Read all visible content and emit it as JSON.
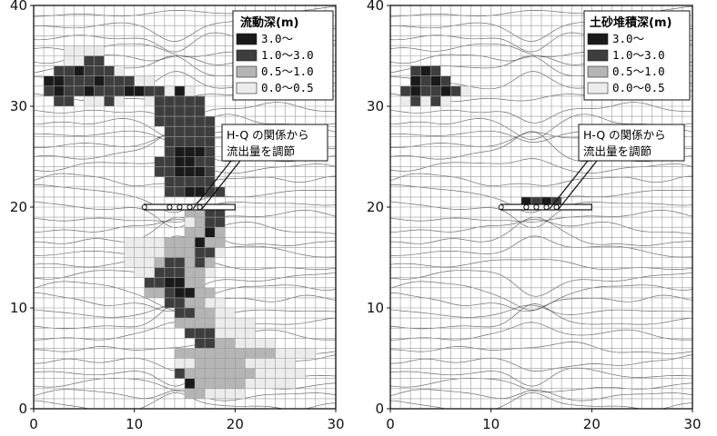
{
  "colors": {
    "depth_3_plus": "#1a1a1a",
    "depth_1_3": "#3e3e3e",
    "depth_05_1": "#b5b5b5",
    "depth_0_05": "#ececec",
    "grid": "#9a9a9a",
    "contour": "#3a3a3a"
  },
  "chart_data": [
    {
      "type": "heatmap",
      "panel": "left",
      "title": "",
      "xlabel": "",
      "ylabel": "",
      "xlim": [
        0,
        30
      ],
      "ylim": [
        0,
        40
      ],
      "x_ticks": [
        "0",
        "10",
        "20",
        "30"
      ],
      "y_ticks": [
        "0",
        "10",
        "20",
        "30",
        "40"
      ],
      "legend": {
        "title": "流動深(m)",
        "position": "top-right",
        "items": [
          {
            "label": "3.0～",
            "class": 3
          },
          {
            "label": "1.0～3.0",
            "class": 2
          },
          {
            "label": "0.5～1.0",
            "class": 1
          },
          {
            "label": "0.0～0.5",
            "class": 0
          }
        ]
      },
      "annotation": {
        "lines": [
          "H-Q の関係から",
          "流出量を調節"
        ],
        "x": 16,
        "y": 20
      },
      "structure": {
        "x_range": [
          11,
          20
        ],
        "y": 20
      },
      "cells_note": "each row [y, x_start, x_end, class]",
      "cells": [
        [
          35,
          3,
          7,
          0
        ],
        [
          34,
          3,
          5,
          0
        ],
        [
          34,
          5,
          7,
          2
        ],
        [
          33,
          2,
          4,
          2
        ],
        [
          33,
          4,
          5,
          3
        ],
        [
          33,
          5,
          8,
          2
        ],
        [
          33,
          8,
          9,
          0
        ],
        [
          32,
          1,
          3,
          3
        ],
        [
          32,
          3,
          6,
          2
        ],
        [
          32,
          6,
          7,
          3
        ],
        [
          32,
          7,
          10,
          2
        ],
        [
          32,
          10,
          12,
          0
        ],
        [
          31,
          1,
          2,
          2
        ],
        [
          31,
          2,
          3,
          3
        ],
        [
          31,
          3,
          5,
          2
        ],
        [
          31,
          5,
          6,
          3
        ],
        [
          31,
          6,
          9,
          2
        ],
        [
          31,
          9,
          11,
          3
        ],
        [
          31,
          11,
          13,
          2
        ],
        [
          31,
          13,
          14,
          0
        ],
        [
          31,
          14,
          15,
          3
        ],
        [
          31,
          15,
          16,
          0
        ],
        [
          30,
          2,
          4,
          2
        ],
        [
          30,
          5,
          7,
          0
        ],
        [
          30,
          7,
          8,
          2
        ],
        [
          30,
          8,
          9,
          0
        ],
        [
          30,
          11,
          12,
          0
        ],
        [
          30,
          12,
          17,
          2
        ],
        [
          29,
          12,
          17,
          2
        ],
        [
          28,
          12,
          18,
          2
        ],
        [
          27,
          13,
          18,
          2
        ],
        [
          26,
          13,
          18,
          2
        ],
        [
          25,
          13,
          14,
          2
        ],
        [
          25,
          14,
          17,
          3
        ],
        [
          25,
          17,
          18,
          2
        ],
        [
          24,
          12,
          14,
          2
        ],
        [
          24,
          14,
          16,
          3
        ],
        [
          24,
          16,
          18,
          2
        ],
        [
          23,
          12,
          14,
          2
        ],
        [
          23,
          14,
          17,
          3
        ],
        [
          23,
          17,
          18,
          2
        ],
        [
          22,
          13,
          18,
          2
        ],
        [
          21,
          13,
          15,
          2
        ],
        [
          21,
          15,
          17,
          3
        ],
        [
          21,
          17,
          19,
          2
        ],
        [
          19,
          15,
          17,
          1
        ],
        [
          19,
          17,
          19,
          2
        ],
        [
          18,
          15,
          16,
          0
        ],
        [
          18,
          16,
          17,
          1
        ],
        [
          18,
          17,
          19,
          2
        ],
        [
          17,
          15,
          17,
          1
        ],
        [
          17,
          17,
          18,
          3
        ],
        [
          17,
          18,
          19,
          1
        ],
        [
          16,
          9,
          13,
          0
        ],
        [
          16,
          13,
          16,
          1
        ],
        [
          16,
          16,
          17,
          3
        ],
        [
          16,
          17,
          19,
          1
        ],
        [
          15,
          9,
          13,
          0
        ],
        [
          15,
          13,
          16,
          1
        ],
        [
          15,
          16,
          18,
          2
        ],
        [
          15,
          18,
          19,
          0
        ],
        [
          14,
          9,
          12,
          0
        ],
        [
          14,
          12,
          13,
          1
        ],
        [
          14,
          13,
          15,
          2
        ],
        [
          14,
          15,
          16,
          1
        ],
        [
          14,
          16,
          17,
          2
        ],
        [
          14,
          17,
          18,
          1
        ],
        [
          13,
          10,
          12,
          0
        ],
        [
          13,
          12,
          15,
          2
        ],
        [
          13,
          15,
          17,
          1
        ],
        [
          13,
          17,
          18,
          0
        ],
        [
          12,
          11,
          13,
          2
        ],
        [
          12,
          13,
          15,
          3
        ],
        [
          12,
          15,
          17,
          1
        ],
        [
          11,
          11,
          13,
          1
        ],
        [
          11,
          13,
          14,
          2
        ],
        [
          11,
          14,
          16,
          3
        ],
        [
          11,
          16,
          18,
          1
        ],
        [
          10,
          13,
          15,
          2
        ],
        [
          10,
          15,
          17,
          1
        ],
        [
          10,
          17,
          19,
          0
        ],
        [
          9,
          14,
          16,
          2
        ],
        [
          9,
          16,
          18,
          1
        ],
        [
          9,
          18,
          20,
          0
        ],
        [
          8,
          14,
          18,
          1
        ],
        [
          8,
          18,
          22,
          0
        ],
        [
          7,
          15,
          18,
          2
        ],
        [
          7,
          18,
          22,
          0
        ],
        [
          6,
          16,
          18,
          2
        ],
        [
          6,
          18,
          20,
          1
        ],
        [
          6,
          20,
          24,
          0
        ],
        [
          5,
          14,
          18,
          1
        ],
        [
          5,
          18,
          24,
          1
        ],
        [
          5,
          24,
          28,
          0
        ],
        [
          4,
          14,
          16,
          0
        ],
        [
          4,
          16,
          21,
          1
        ],
        [
          4,
          21,
          26,
          0
        ],
        [
          3,
          14,
          15,
          2
        ],
        [
          3,
          15,
          22,
          1
        ],
        [
          3,
          22,
          27,
          0
        ],
        [
          2,
          15,
          16,
          3
        ],
        [
          2,
          16,
          21,
          1
        ],
        [
          2,
          21,
          26,
          0
        ],
        [
          1,
          15,
          17,
          1
        ],
        [
          1,
          17,
          21,
          0
        ]
      ]
    },
    {
      "type": "heatmap",
      "panel": "right",
      "title": "",
      "xlabel": "",
      "ylabel": "",
      "xlim": [
        0,
        30
      ],
      "ylim": [
        0,
        40
      ],
      "x_ticks": [
        "0",
        "10",
        "20",
        "30"
      ],
      "y_ticks": [
        "0",
        "10",
        "20",
        "30",
        "40"
      ],
      "legend": {
        "title": "土砂堆積深(m)",
        "position": "top-right",
        "items": [
          {
            "label": "3.0～",
            "class": 3
          },
          {
            "label": "1.0～3.0",
            "class": 2
          },
          {
            "label": "0.5～1.0",
            "class": 1
          },
          {
            "label": "0.0～0.5",
            "class": 0
          }
        ]
      },
      "annotation": {
        "lines": [
          "H-Q の関係から",
          "流出量を調節"
        ],
        "x": 16,
        "y": 20
      },
      "structure": {
        "x_range": [
          11,
          20
        ],
        "y": 20
      },
      "cells_note": "each row [y, x_start, x_end, class]",
      "cells": [
        [
          33,
          2,
          3,
          2
        ],
        [
          33,
          3,
          4,
          3
        ],
        [
          33,
          4,
          5,
          2
        ],
        [
          32,
          2,
          3,
          3
        ],
        [
          32,
          3,
          4,
          2
        ],
        [
          32,
          4,
          5,
          3
        ],
        [
          32,
          5,
          6,
          2
        ],
        [
          31,
          1,
          2,
          2
        ],
        [
          31,
          2,
          3,
          3
        ],
        [
          31,
          3,
          5,
          2
        ],
        [
          31,
          5,
          6,
          3
        ],
        [
          31,
          6,
          7,
          2
        ],
        [
          31,
          7,
          8,
          0
        ],
        [
          30,
          1,
          2,
          0
        ],
        [
          30,
          2,
          3,
          2
        ],
        [
          30,
          3,
          4,
          0
        ],
        [
          30,
          4,
          5,
          2
        ],
        [
          30,
          5,
          6,
          0
        ],
        [
          20,
          13,
          14,
          3
        ],
        [
          20,
          14,
          15,
          2
        ],
        [
          20,
          15,
          16,
          3
        ],
        [
          20,
          16,
          17,
          2
        ]
      ]
    }
  ]
}
